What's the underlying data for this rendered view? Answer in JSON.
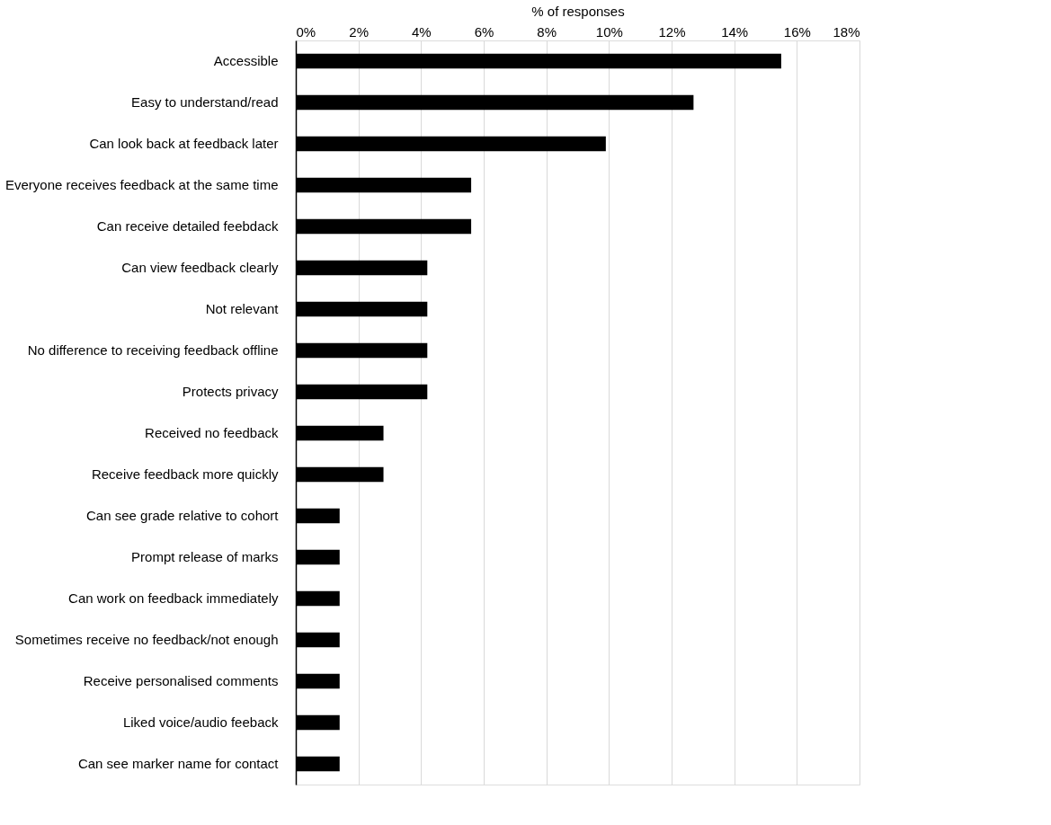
{
  "chart_data": {
    "type": "bar",
    "orientation": "horizontal",
    "xlabel": "% of responses",
    "categories": [
      "Accessible",
      "Easy to understand/read",
      "Can look back at feedback later",
      "Everyone receives feedback at the same time",
      "Can receive detailed feebdack",
      "Can view feedback clearly",
      "Not relevant",
      "No difference to receiving feedback offline",
      "Protects privacy",
      "Received no feedback",
      "Receive feedback more quickly",
      "Can see grade relative to cohort",
      "Prompt release of marks",
      "Can work on feedback immediately",
      "Sometimes receive no feedback/not enough",
      "Receive personalised comments",
      "Liked voice/audio feeback",
      "Can see marker name for contact"
    ],
    "values": [
      15.5,
      12.7,
      9.9,
      5.6,
      5.6,
      4.2,
      4.2,
      4.2,
      4.2,
      2.8,
      2.8,
      1.4,
      1.4,
      1.4,
      1.4,
      1.4,
      1.4,
      1.4
    ],
    "color": "#000000",
    "xlim": [
      0,
      18
    ],
    "xticks": [
      {
        "value": 0,
        "label": "0%"
      },
      {
        "value": 2,
        "label": "2%"
      },
      {
        "value": 4,
        "label": "4%"
      },
      {
        "value": 6,
        "label": "6%"
      },
      {
        "value": 8,
        "label": "8%"
      },
      {
        "value": 10,
        "label": "10%"
      },
      {
        "value": 12,
        "label": "12%"
      },
      {
        "value": 14,
        "label": "14%"
      },
      {
        "value": 16,
        "label": "16%"
      },
      {
        "value": 18,
        "label": "18%"
      }
    ],
    "grid": "x"
  }
}
